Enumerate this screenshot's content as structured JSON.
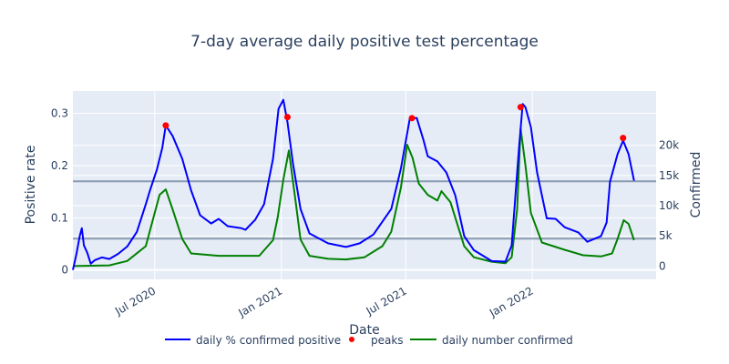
{
  "chart_data": {
    "type": "line",
    "title": "7-day average daily positive test percentage",
    "xlabel": "Date",
    "ylabel": "Positive rate",
    "y2label": "Confirmed",
    "xrange": [
      "2020-03-04",
      "2022-06-30"
    ],
    "ylim": [
      -0.018,
      0.343
    ],
    "y2lim": [
      -2200,
      29000
    ],
    "x_ticks": [
      {
        "date": "2020-07-01",
        "label": "Jul 2020"
      },
      {
        "date": "2021-01-01",
        "label": "Jan 2021"
      },
      {
        "date": "2021-07-01",
        "label": "Jul 2021"
      },
      {
        "date": "2022-01-01",
        "label": "Jan 2022"
      }
    ],
    "y_ticks": [
      {
        "v": 0,
        "label": "0"
      },
      {
        "v": 0.1,
        "label": "0.1"
      },
      {
        "v": 0.2,
        "label": "0.2"
      },
      {
        "v": 0.3,
        "label": "0.3"
      }
    ],
    "y2_ticks": [
      {
        "v": 0,
        "label": "0"
      },
      {
        "v": 5000,
        "label": "5k"
      },
      {
        "v": 10000,
        "label": "10k"
      },
      {
        "v": 15000,
        "label": "15k"
      },
      {
        "v": 20000,
        "label": "20k"
      }
    ],
    "hlines": [
      0.17,
      0.06
    ],
    "grid": true,
    "legend_placement": "bottom-center",
    "series": [
      {
        "name": "daily % confirmed positive",
        "axis": "y",
        "color": "#0000ff",
        "mode": "line",
        "x": [
          "2020-03-04",
          "2020-03-09",
          "2020-03-14",
          "2020-03-17",
          "2020-03-20",
          "2020-03-25",
          "2020-03-30",
          "2020-04-05",
          "2020-04-15",
          "2020-04-26",
          "2020-05-09",
          "2020-05-22",
          "2020-06-05",
          "2020-06-18",
          "2020-06-24",
          "2020-07-04",
          "2020-07-12",
          "2020-07-17",
          "2020-07-27",
          "2020-08-10",
          "2020-08-23",
          "2020-09-05",
          "2020-09-21",
          "2020-10-02",
          "2020-10-15",
          "2020-11-04",
          "2020-11-10",
          "2020-11-24",
          "2020-12-07",
          "2020-12-20",
          "2020-12-28",
          "2021-01-04",
          "2021-01-10",
          "2021-01-18",
          "2021-01-29",
          "2021-02-11",
          "2021-03-10",
          "2021-04-05",
          "2021-04-25",
          "2021-05-15",
          "2021-06-10",
          "2021-06-24",
          "2021-07-07",
          "2021-07-17",
          "2021-07-27",
          "2021-08-02",
          "2021-08-16",
          "2021-08-29",
          "2021-09-11",
          "2021-09-24",
          "2021-10-08",
          "2021-11-03",
          "2021-11-23",
          "2021-12-02",
          "2021-12-13",
          "2021-12-18",
          "2021-12-22",
          "2021-12-30",
          "2022-01-08",
          "2022-01-22",
          "2022-02-04",
          "2022-02-17",
          "2022-03-09",
          "2022-03-22",
          "2022-04-11",
          "2022-04-19",
          "2022-04-24",
          "2022-05-05",
          "2022-05-13",
          "2022-05-21",
          "2022-05-29"
        ],
        "y": [
          0,
          0.03,
          0.065,
          0.08,
          0.047,
          0.033,
          0.012,
          0.019,
          0.024,
          0.021,
          0.031,
          0.045,
          0.073,
          0.126,
          0.152,
          0.192,
          0.234,
          0.277,
          0.257,
          0.213,
          0.152,
          0.105,
          0.089,
          0.098,
          0.084,
          0.08,
          0.077,
          0.096,
          0.126,
          0.213,
          0.309,
          0.326,
          0.283,
          0.204,
          0.117,
          0.07,
          0.051,
          0.044,
          0.051,
          0.068,
          0.117,
          0.195,
          0.291,
          0.291,
          0.248,
          0.218,
          0.208,
          0.187,
          0.143,
          0.065,
          0.038,
          0.017,
          0.016,
          0.047,
          0.239,
          0.318,
          0.312,
          0.274,
          0.187,
          0.099,
          0.098,
          0.082,
          0.072,
          0.054,
          0.065,
          0.091,
          0.169,
          0.222,
          0.248,
          0.222,
          0.171
        ]
      },
      {
        "name": "peaks",
        "axis": "y",
        "color": "#ff0000",
        "mode": "markers",
        "x": [
          "2020-07-17",
          "2021-01-10",
          "2021-07-10",
          "2021-12-15",
          "2022-05-13"
        ],
        "y": [
          0.277,
          0.293,
          0.291,
          0.312,
          0.253
        ]
      },
      {
        "name": "daily number confirmed",
        "axis": "y2",
        "color": "#008000",
        "mode": "line",
        "x": [
          "2020-03-04",
          "2020-04-26",
          "2020-05-22",
          "2020-06-18",
          "2020-07-08",
          "2020-07-17",
          "2020-07-27",
          "2020-08-10",
          "2020-08-23",
          "2020-10-02",
          "2020-10-28",
          "2020-11-30",
          "2020-12-20",
          "2020-12-27",
          "2021-01-04",
          "2021-01-12",
          "2021-01-22",
          "2021-01-29",
          "2021-02-11",
          "2021-03-10",
          "2021-04-05",
          "2021-05-02",
          "2021-05-28",
          "2021-06-10",
          "2021-06-24",
          "2021-07-03",
          "2021-07-11",
          "2021-07-20",
          "2021-08-02",
          "2021-08-16",
          "2021-08-22",
          "2021-09-04",
          "2021-09-24",
          "2021-10-08",
          "2021-11-03",
          "2021-11-23",
          "2021-12-02",
          "2021-12-10",
          "2021-12-15",
          "2021-12-22",
          "2021-12-30",
          "2022-01-15",
          "2022-02-17",
          "2022-03-16",
          "2022-04-11",
          "2022-04-27",
          "2022-05-05",
          "2022-05-14",
          "2022-05-21",
          "2022-05-29"
        ],
        "y": [
          0,
          120,
          850,
          3300,
          11800,
          12700,
          9400,
          4500,
          2100,
          1700,
          1700,
          1700,
          4300,
          8200,
          14300,
          19150,
          10600,
          4400,
          1700,
          1200,
          1100,
          1460,
          3300,
          5700,
          13050,
          20100,
          17900,
          13650,
          11800,
          10850,
          12400,
          10600,
          3300,
          1460,
          730,
          490,
          1460,
          9400,
          22800,
          16700,
          8800,
          3900,
          2700,
          1800,
          1600,
          2100,
          4500,
          7600,
          7000,
          4300
        ]
      }
    ]
  }
}
